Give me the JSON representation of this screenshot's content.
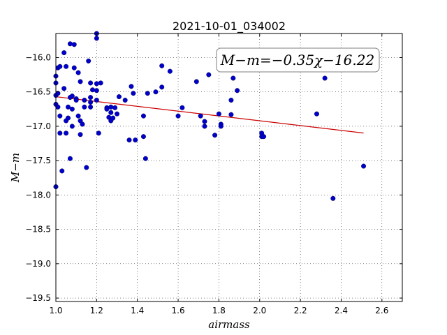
{
  "chart_data": {
    "type": "scatter",
    "title": "2021-10-01_034002",
    "xlabel": "airmass",
    "ylabel": "M−m",
    "xlim": [
      1.0,
      2.7
    ],
    "ylim": [
      -19.55,
      -15.65
    ],
    "xticks": [
      1.0,
      1.2,
      1.4,
      1.6,
      1.8,
      2.0,
      2.2,
      2.4,
      2.6
    ],
    "xtick_labels": [
      "1.0",
      "1.2",
      "1.4",
      "1.6",
      "1.8",
      "2.0",
      "2.2",
      "2.4",
      "2.6"
    ],
    "yticks": [
      -16.0,
      -16.5,
      -17.0,
      -17.5,
      -18.0,
      -18.5,
      -19.0,
      -19.5
    ],
    "ytick_labels": [
      "−16.0",
      "−16.5",
      "−17.0",
      "−17.5",
      "−18.0",
      "−18.5",
      "−19.0",
      "−19.5"
    ],
    "grid": true,
    "annotation": "M−m=−0.35χ−16.22",
    "fit": {
      "slope": -0.35,
      "intercept": -16.22,
      "x_range": [
        1.0,
        2.51
      ],
      "color": "#cc0000"
    },
    "point_color": "#0000cc",
    "points": [
      [
        1.0,
        -16.27
      ],
      [
        1.0,
        -16.37
      ],
      [
        1.0,
        -16.55
      ],
      [
        1.0,
        -16.68
      ],
      [
        1.0,
        -17.88
      ],
      [
        1.01,
        -16.15
      ],
      [
        1.01,
        -16.52
      ],
      [
        1.01,
        -16.72
      ],
      [
        1.02,
        -16.13
      ],
      [
        1.02,
        -16.85
      ],
      [
        1.02,
        -17.1
      ],
      [
        1.03,
        -17.65
      ],
      [
        1.04,
        -15.93
      ],
      [
        1.04,
        -16.45
      ],
      [
        1.05,
        -16.13
      ],
      [
        1.05,
        -16.92
      ],
      [
        1.05,
        -17.1
      ],
      [
        1.06,
        -16.72
      ],
      [
        1.06,
        -16.88
      ],
      [
        1.07,
        -15.8
      ],
      [
        1.07,
        -16.58
      ],
      [
        1.07,
        -17.47
      ],
      [
        1.08,
        -16.56
      ],
      [
        1.08,
        -16.75
      ],
      [
        1.08,
        -17.0
      ],
      [
        1.09,
        -15.81
      ],
      [
        1.09,
        -16.15
      ],
      [
        1.1,
        -16.6
      ],
      [
        1.1,
        -16.62
      ],
      [
        1.11,
        -16.22
      ],
      [
        1.11,
        -16.85
      ],
      [
        1.12,
        -16.35
      ],
      [
        1.12,
        -16.92
      ],
      [
        1.12,
        -17.12
      ],
      [
        1.13,
        -16.97
      ],
      [
        1.14,
        -16.62
      ],
      [
        1.14,
        -16.72
      ],
      [
        1.15,
        -17.6
      ],
      [
        1.16,
        -16.05
      ],
      [
        1.17,
        -16.37
      ],
      [
        1.17,
        -16.58
      ],
      [
        1.17,
        -16.65
      ],
      [
        1.17,
        -16.72
      ],
      [
        1.18,
        -16.47
      ],
      [
        1.2,
        -15.65
      ],
      [
        1.2,
        -15.72
      ],
      [
        1.2,
        -16.38
      ],
      [
        1.2,
        -16.48
      ],
      [
        1.2,
        -16.62
      ],
      [
        1.21,
        -17.1
      ],
      [
        1.22,
        -16.37
      ],
      [
        1.25,
        -16.73
      ],
      [
        1.25,
        -16.75
      ],
      [
        1.26,
        -16.87
      ],
      [
        1.27,
        -16.72
      ],
      [
        1.27,
        -16.8
      ],
      [
        1.27,
        -16.92
      ],
      [
        1.28,
        -16.88
      ],
      [
        1.29,
        -16.73
      ],
      [
        1.3,
        -16.82
      ],
      [
        1.31,
        -16.57
      ],
      [
        1.34,
        -16.62
      ],
      [
        1.36,
        -17.2
      ],
      [
        1.37,
        -16.42
      ],
      [
        1.38,
        -16.52
      ],
      [
        1.39,
        -17.2
      ],
      [
        1.43,
        -16.85
      ],
      [
        1.43,
        -17.15
      ],
      [
        1.44,
        -17.47
      ],
      [
        1.45,
        -16.52
      ],
      [
        1.49,
        -16.5
      ],
      [
        1.52,
        -16.12
      ],
      [
        1.52,
        -16.43
      ],
      [
        1.56,
        -16.2
      ],
      [
        1.6,
        -16.85
      ],
      [
        1.62,
        -16.73
      ],
      [
        1.69,
        -16.35
      ],
      [
        1.71,
        -16.85
      ],
      [
        1.73,
        -16.93
      ],
      [
        1.73,
        -17.0
      ],
      [
        1.75,
        -16.25
      ],
      [
        1.78,
        -17.13
      ],
      [
        1.8,
        -16.82
      ],
      [
        1.81,
        -16.97
      ],
      [
        1.81,
        -17.0
      ],
      [
        1.86,
        -16.62
      ],
      [
        1.86,
        -16.83
      ],
      [
        1.87,
        -16.3
      ],
      [
        1.89,
        -16.48
      ],
      [
        2.01,
        -17.15
      ],
      [
        2.01,
        -17.1
      ],
      [
        2.02,
        -17.15
      ],
      [
        2.28,
        -16.82
      ],
      [
        2.32,
        -16.3
      ],
      [
        2.36,
        -18.05
      ],
      [
        2.51,
        -17.58
      ]
    ]
  }
}
